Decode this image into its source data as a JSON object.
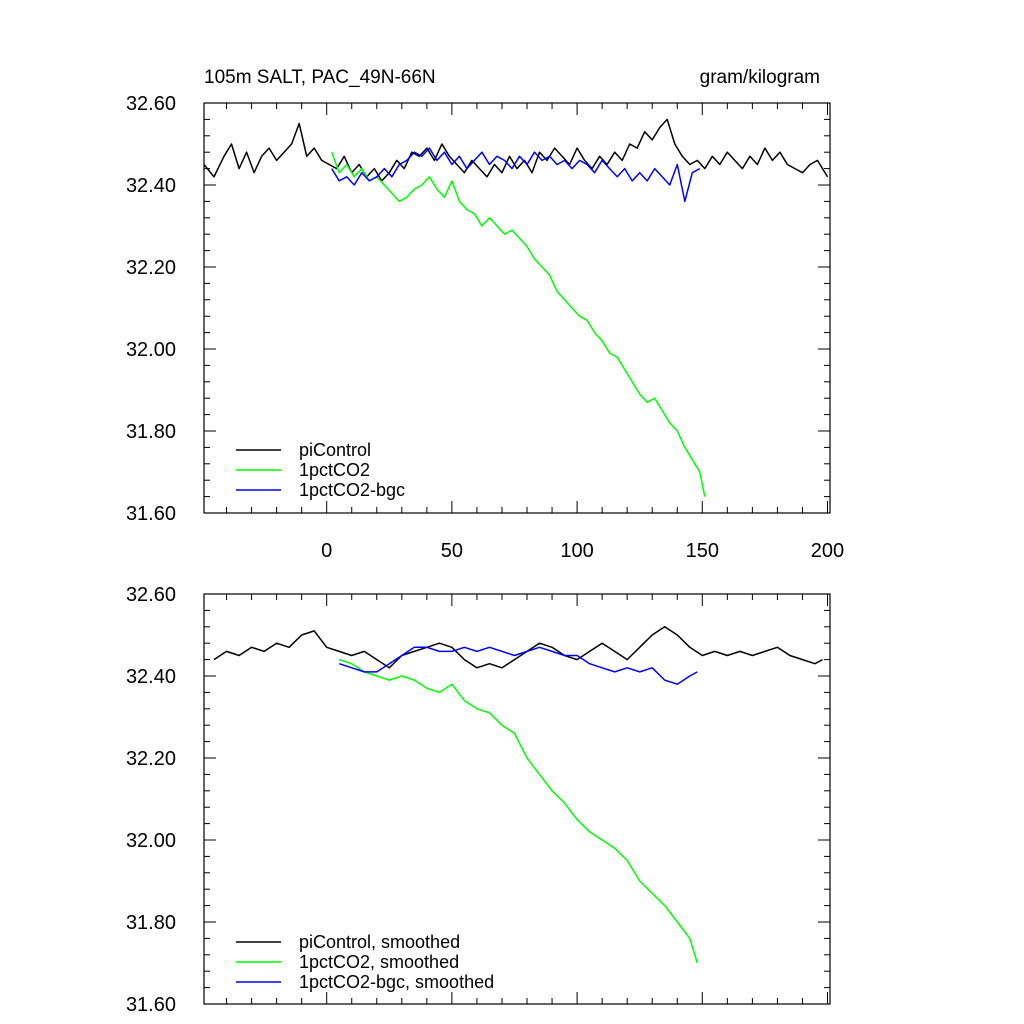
{
  "chart_data": [
    {
      "type": "line",
      "title": "105m SALT, PAC_49N-66N",
      "units": "gram/kilogram",
      "xlabel": "",
      "ylabel": "",
      "xlim": [
        -49,
        201
      ],
      "ylim": [
        31.6,
        32.6
      ],
      "xticks": [
        0,
        50,
        100,
        150,
        200
      ],
      "yticks": [
        31.6,
        31.8,
        32.0,
        32.2,
        32.4,
        32.6
      ],
      "x_tick_labels": [
        "0",
        "50",
        "100",
        "150",
        "200"
      ],
      "y_tick_labels": [
        "31.60",
        "31.80",
        "32.00",
        "32.20",
        "32.40",
        "32.60"
      ],
      "legend_position": "bottom-left",
      "series": [
        {
          "name": "piControl",
          "color": "#000000",
          "x": [
            -49,
            -45,
            -41,
            -38,
            -35,
            -32,
            -29,
            -26,
            -23,
            -20,
            -17,
            -14,
            -11,
            -8,
            -5,
            -2,
            1,
            4,
            7,
            10,
            13,
            16,
            19,
            22,
            25,
            28,
            31,
            34,
            37,
            40,
            43,
            46,
            49,
            52,
            55,
            58,
            61,
            64,
            67,
            70,
            73,
            76,
            79,
            82,
            85,
            88,
            91,
            94,
            97,
            100,
            103,
            106,
            109,
            112,
            115,
            118,
            121,
            124,
            127,
            130,
            133,
            136,
            139,
            142,
            145,
            148,
            151,
            154,
            157,
            160,
            163,
            166,
            169,
            172,
            175,
            178,
            181,
            184,
            187,
            190,
            193,
            196,
            200
          ],
          "values": [
            32.45,
            32.42,
            32.47,
            32.5,
            32.44,
            32.48,
            32.43,
            32.47,
            32.49,
            32.46,
            32.48,
            32.5,
            32.55,
            32.47,
            32.49,
            32.46,
            32.45,
            32.44,
            32.47,
            32.43,
            32.45,
            32.42,
            32.44,
            32.41,
            32.43,
            32.46,
            32.44,
            32.48,
            32.47,
            32.49,
            32.46,
            32.5,
            32.47,
            32.45,
            32.43,
            32.46,
            32.44,
            32.42,
            32.45,
            32.43,
            32.47,
            32.44,
            32.46,
            32.43,
            32.48,
            32.46,
            32.49,
            32.47,
            32.45,
            32.49,
            32.46,
            32.44,
            32.47,
            32.45,
            32.48,
            32.46,
            32.5,
            32.49,
            32.53,
            32.51,
            32.54,
            32.56,
            32.5,
            32.47,
            32.45,
            32.46,
            32.44,
            32.47,
            32.45,
            32.48,
            32.46,
            32.44,
            32.47,
            32.45,
            32.49,
            32.46,
            32.48,
            32.45,
            32.44,
            32.43,
            32.45,
            32.46,
            32.42
          ]
        },
        {
          "name": "1pctCO2",
          "color": "#00ff00",
          "x": [
            2,
            5,
            8,
            11,
            14,
            17,
            20,
            23,
            26,
            29,
            32,
            35,
            38,
            41,
            44,
            47,
            50,
            53,
            56,
            59,
            62,
            65,
            68,
            71,
            74,
            77,
            80,
            83,
            86,
            89,
            92,
            95,
            98,
            101,
            104,
            107,
            110,
            113,
            116,
            119,
            122,
            125,
            128,
            131,
            134,
            137,
            140,
            143,
            146,
            149,
            151
          ],
          "values": [
            32.48,
            32.43,
            32.45,
            32.42,
            32.44,
            32.41,
            32.42,
            32.4,
            32.38,
            32.36,
            32.37,
            32.39,
            32.4,
            32.42,
            32.39,
            32.37,
            32.41,
            32.36,
            32.34,
            32.33,
            32.3,
            32.32,
            32.3,
            32.28,
            32.29,
            32.27,
            32.25,
            32.22,
            32.2,
            32.18,
            32.14,
            32.12,
            32.1,
            32.08,
            32.07,
            32.04,
            32.02,
            31.99,
            31.98,
            31.95,
            31.92,
            31.89,
            31.87,
            31.88,
            31.85,
            31.82,
            31.8,
            31.76,
            31.73,
            31.7,
            31.64
          ]
        },
        {
          "name": "1pctCO2-bgc",
          "color": "#0000ff",
          "x": [
            2,
            5,
            8,
            11,
            14,
            17,
            20,
            23,
            26,
            29,
            32,
            35,
            38,
            41,
            44,
            47,
            50,
            53,
            56,
            59,
            62,
            65,
            68,
            71,
            74,
            77,
            80,
            83,
            86,
            89,
            92,
            95,
            98,
            101,
            104,
            107,
            110,
            113,
            116,
            119,
            122,
            125,
            128,
            131,
            134,
            137,
            140,
            143,
            146,
            149
          ],
          "values": [
            32.44,
            32.41,
            32.42,
            32.4,
            32.43,
            32.41,
            32.42,
            32.44,
            32.42,
            32.45,
            32.46,
            32.48,
            32.47,
            32.49,
            32.46,
            32.48,
            32.45,
            32.47,
            32.44,
            32.46,
            32.48,
            32.45,
            32.47,
            32.46,
            32.44,
            32.47,
            32.45,
            32.48,
            32.46,
            32.47,
            32.45,
            32.46,
            32.44,
            32.46,
            32.45,
            32.43,
            32.46,
            32.44,
            32.42,
            32.44,
            32.41,
            32.43,
            32.41,
            32.44,
            32.42,
            32.4,
            32.45,
            32.36,
            32.43,
            32.44
          ]
        }
      ]
    },
    {
      "type": "line",
      "title": "",
      "xlabel": "",
      "ylabel": "",
      "xlim": [
        -49,
        201
      ],
      "ylim": [
        31.6,
        32.6
      ],
      "xticks": [
        0,
        50,
        100,
        150,
        200
      ],
      "yticks": [
        31.6,
        31.8,
        32.0,
        32.2,
        32.4,
        32.6
      ],
      "y_tick_labels": [
        "31.60",
        "31.80",
        "32.00",
        "32.20",
        "32.40",
        "32.60"
      ],
      "legend_position": "bottom-left",
      "series": [
        {
          "name": "piControl, smoothed",
          "color": "#000000",
          "x": [
            -45,
            -40,
            -35,
            -30,
            -25,
            -20,
            -15,
            -10,
            -5,
            0,
            5,
            10,
            15,
            20,
            25,
            30,
            35,
            40,
            45,
            50,
            55,
            60,
            65,
            70,
            75,
            80,
            85,
            90,
            95,
            100,
            105,
            110,
            115,
            120,
            125,
            130,
            135,
            140,
            145,
            150,
            155,
            160,
            165,
            170,
            175,
            180,
            185,
            190,
            195,
            198
          ],
          "values": [
            32.44,
            32.46,
            32.45,
            32.47,
            32.46,
            32.48,
            32.47,
            32.5,
            32.51,
            32.47,
            32.46,
            32.45,
            32.46,
            32.44,
            32.42,
            32.45,
            32.46,
            32.47,
            32.48,
            32.47,
            32.44,
            32.42,
            32.43,
            32.42,
            32.44,
            32.46,
            32.48,
            32.47,
            32.45,
            32.44,
            32.46,
            32.48,
            32.46,
            32.44,
            32.47,
            32.5,
            32.52,
            32.5,
            32.47,
            32.45,
            32.46,
            32.45,
            32.46,
            32.45,
            32.46,
            32.47,
            32.45,
            32.44,
            32.43,
            32.44
          ]
        },
        {
          "name": "1pctCO2, smoothed",
          "color": "#00ff00",
          "x": [
            5,
            10,
            15,
            20,
            25,
            30,
            35,
            40,
            45,
            50,
            55,
            60,
            65,
            70,
            75,
            80,
            85,
            90,
            95,
            100,
            105,
            110,
            115,
            120,
            125,
            130,
            135,
            140,
            145,
            148
          ],
          "values": [
            32.44,
            32.43,
            32.41,
            32.4,
            32.39,
            32.4,
            32.39,
            32.37,
            32.36,
            32.38,
            32.34,
            32.32,
            32.31,
            32.28,
            32.26,
            32.2,
            32.16,
            32.12,
            32.09,
            32.05,
            32.02,
            32.0,
            31.98,
            31.95,
            31.9,
            31.87,
            31.84,
            31.8,
            31.76,
            31.7
          ]
        },
        {
          "name": "1pctCO2-bgc, smoothed",
          "color": "#0000ff",
          "x": [
            5,
            10,
            15,
            20,
            25,
            30,
            35,
            40,
            45,
            50,
            55,
            60,
            65,
            70,
            75,
            80,
            85,
            90,
            95,
            100,
            105,
            110,
            115,
            120,
            125,
            130,
            135,
            140,
            145,
            148
          ],
          "values": [
            32.43,
            32.42,
            32.41,
            32.41,
            32.43,
            32.45,
            32.47,
            32.47,
            32.46,
            32.46,
            32.47,
            32.46,
            32.47,
            32.46,
            32.45,
            32.46,
            32.47,
            32.46,
            32.45,
            32.45,
            32.43,
            32.42,
            32.41,
            32.42,
            32.41,
            32.42,
            32.39,
            32.38,
            32.4,
            32.41
          ]
        }
      ]
    }
  ]
}
